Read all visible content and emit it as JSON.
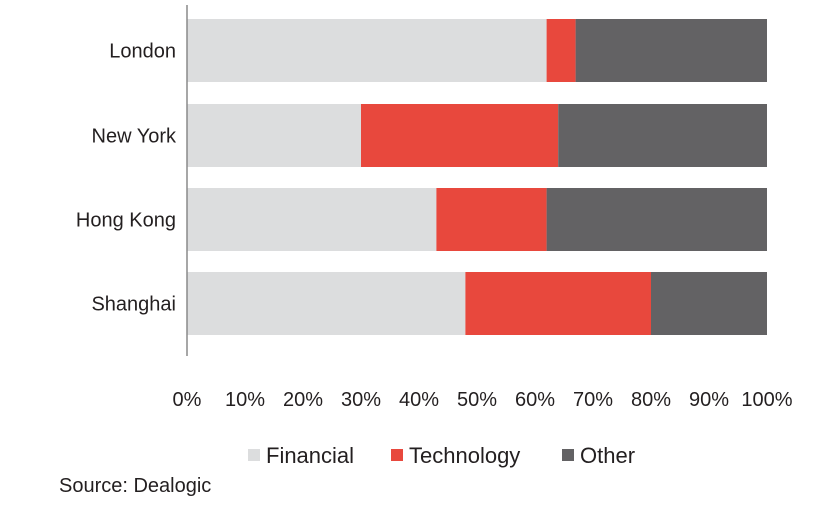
{
  "chart_data": {
    "type": "bar",
    "orientation": "horizontal",
    "stacked": true,
    "categories": [
      "London",
      "New York",
      "Hong Kong",
      "Shanghai"
    ],
    "series": [
      {
        "name": "Financial",
        "color": "#dcddde",
        "values": [
          62,
          30,
          43,
          48
        ]
      },
      {
        "name": "Technology",
        "color": "#e8483d",
        "values": [
          5,
          34,
          19,
          32
        ]
      },
      {
        "name": "Other",
        "color": "#636264",
        "values": [
          33,
          36,
          38,
          20
        ]
      }
    ],
    "xlim": [
      0,
      100
    ],
    "ticks": [
      "0%",
      "10%",
      "20%",
      "30%",
      "40%",
      "50%",
      "60%",
      "70%",
      "80%",
      "90%",
      "100%"
    ],
    "legend_position": "bottom",
    "title": "",
    "xlabel": "",
    "ylabel": ""
  },
  "source": "Source: Dealogic"
}
